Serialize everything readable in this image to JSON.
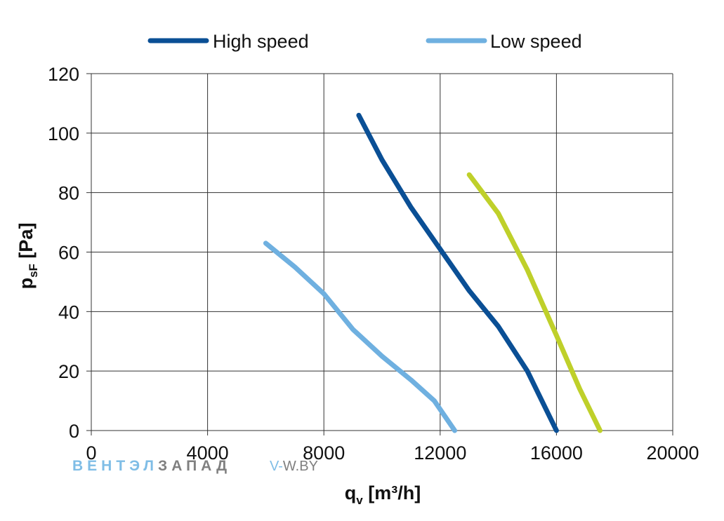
{
  "chart_data": {
    "type": "line",
    "xlabel": {
      "main": "q",
      "sub": "v",
      "rest": " [m³/h]"
    },
    "ylabel": {
      "main": "p",
      "sub": "sF",
      "rest": " [Pa]"
    },
    "xlim": [
      0,
      20000
    ],
    "ylim": [
      0,
      120
    ],
    "xticks": [
      0,
      4000,
      8000,
      12000,
      16000,
      20000
    ],
    "yticks": [
      0,
      20,
      40,
      60,
      80,
      100,
      120
    ],
    "grid": true,
    "legend_position": "top",
    "series": [
      {
        "name": "High speed",
        "color": "#0a4f95",
        "in_legend": true,
        "x": [
          9200,
          10000,
          11000,
          12000,
          13000,
          14000,
          15000,
          16000
        ],
        "y": [
          106,
          91,
          75,
          61,
          47,
          35,
          20,
          0
        ]
      },
      {
        "name": "Low speed",
        "color": "#6fb0e0",
        "in_legend": true,
        "x": [
          6000,
          7000,
          8000,
          9000,
          10000,
          11000,
          11800,
          12500
        ],
        "y": [
          63,
          55,
          46,
          34,
          25,
          17,
          10,
          0
        ]
      },
      {
        "color": "#bfd02a",
        "in_legend": false,
        "x": [
          13000,
          14000,
          15000,
          16000,
          16800,
          17500
        ],
        "y": [
          86,
          73,
          54,
          32,
          14,
          0
        ]
      }
    ]
  },
  "watermark": {
    "part1": "ВЕНТЭЛ",
    "part2": "ЗАПАД",
    "part3": "V-",
    "part4": "W.BY",
    "color1": "#7fbde6",
    "color2": "#808080"
  }
}
